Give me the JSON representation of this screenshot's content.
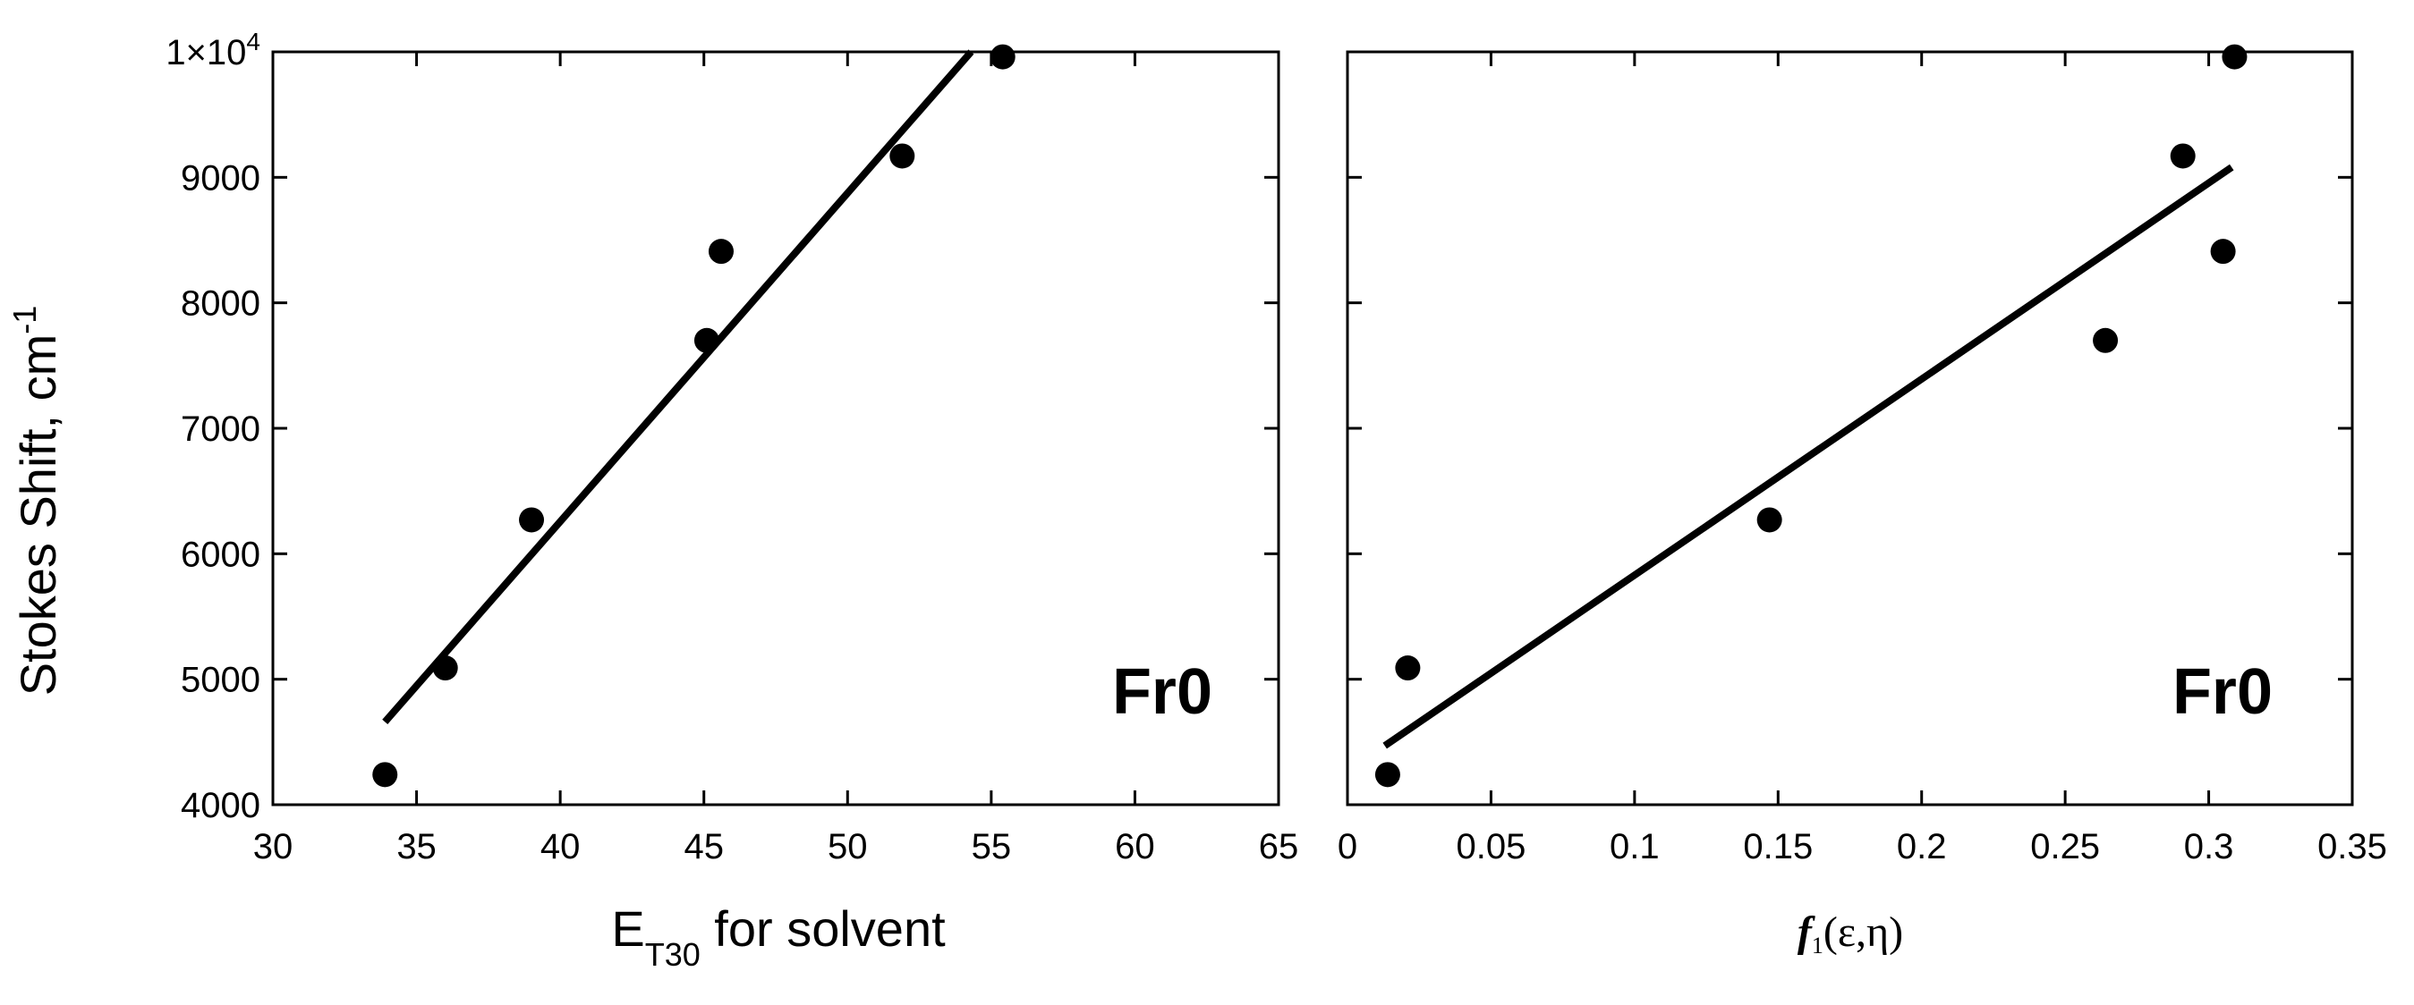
{
  "chart_data": [
    {
      "type": "scatter",
      "ylabel": "Stokes Shift, cm",
      "ylabel_sup": "-1",
      "xlabel_main": "E",
      "xlabel_sub": "T30",
      "xlabel_rest": " for solvent",
      "annotation": "Fr0",
      "xlim": [
        30,
        65
      ],
      "ylim": [
        4000,
        10000
      ],
      "xticks": [
        30,
        35,
        40,
        45,
        50,
        55,
        60,
        65
      ],
      "xtick_labels": [
        "30",
        "35",
        "40",
        "45",
        "50",
        "55",
        "60",
        "65"
      ],
      "yticks": [
        4000,
        5000,
        6000,
        7000,
        8000,
        9000,
        10000
      ],
      "ytick_labels": [
        "4000",
        "5000",
        "6000",
        "7000",
        "8000",
        "9000",
        ""
      ],
      "ytop_base": "1×10",
      "ytop_exp": "4",
      "grid": false,
      "points": [
        {
          "x": 33.9,
          "y": 4240
        },
        {
          "x": 36.0,
          "y": 5090
        },
        {
          "x": 39.0,
          "y": 6270
        },
        {
          "x": 45.1,
          "y": 7700
        },
        {
          "x": 45.6,
          "y": 8410
        },
        {
          "x": 51.9,
          "y": 9170
        },
        {
          "x": 55.4,
          "y": 9960
        }
      ],
      "fit_line": {
        "x": [
          33.9,
          54.3
        ],
        "y": [
          4660,
          10000
        ]
      }
    },
    {
      "type": "scatter",
      "xlabel_main": "f",
      "xlabel_sub": "1",
      "xlabel_rest": "(ε,η)",
      "annotation": "Fr0",
      "xlim": [
        0,
        0.35
      ],
      "ylim": [
        4000,
        10000
      ],
      "xticks": [
        0,
        0.05,
        0.1,
        0.15,
        0.2,
        0.25,
        0.3,
        0.35
      ],
      "xtick_labels": [
        "0",
        "0.05",
        "0.1",
        "0.15",
        "0.2",
        "0.25",
        "0.3",
        "0.35"
      ],
      "yticks": [
        4000,
        5000,
        6000,
        7000,
        8000,
        9000,
        10000
      ],
      "grid": false,
      "points": [
        {
          "x": 0.014,
          "y": 4240
        },
        {
          "x": 0.021,
          "y": 5090
        },
        {
          "x": 0.147,
          "y": 6270
        },
        {
          "x": 0.264,
          "y": 7700
        },
        {
          "x": 0.291,
          "y": 9170
        },
        {
          "x": 0.305,
          "y": 8410
        },
        {
          "x": 0.309,
          "y": 9960
        }
      ],
      "fit_line": {
        "x": [
          0.013,
          0.308
        ],
        "y": [
          4470,
          9080
        ]
      }
    }
  ]
}
